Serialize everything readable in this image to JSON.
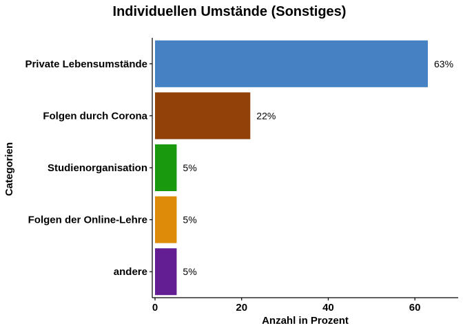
{
  "chart_data": {
    "type": "bar",
    "orientation": "horizontal",
    "title": "Individuellen Umstände (Sonstiges)",
    "xlabel": "Anzahl in Prozent",
    "ylabel": "Categorien",
    "categories": [
      "Private Lebensumstände",
      "Folgen durch Corona",
      "Studienorganisation",
      "Folgen der Online-Lehre",
      "andere"
    ],
    "values": [
      63,
      22,
      5,
      5,
      5
    ],
    "value_labels": [
      "63%",
      "22%",
      "5%",
      "5%",
      "5%"
    ],
    "colors": [
      "#4682c3",
      "#924109",
      "#18990e",
      "#df8b0a",
      "#631e94"
    ],
    "xlim": [
      0,
      70
    ],
    "xticks": [
      0,
      20,
      40,
      60
    ],
    "xtick_labels": [
      "0",
      "20",
      "40",
      "60"
    ],
    "grid": false,
    "legend": "none"
  }
}
